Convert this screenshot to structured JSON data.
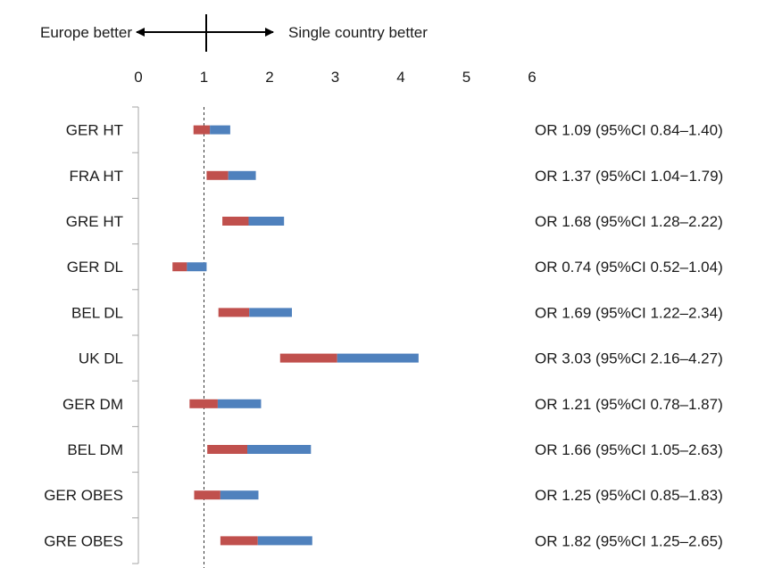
{
  "colors": {
    "lower": "#c0504d",
    "upper": "#4f81bd",
    "axis": "#a6a6a6",
    "text": "#1a1a1a"
  },
  "direction": {
    "left": "Europe better",
    "right": "Single country better"
  },
  "chart_data": {
    "type": "forest",
    "title": "",
    "xlabel": "",
    "ylabel": "",
    "xlim": [
      0,
      6
    ],
    "xticks": [
      "0",
      "1",
      "2",
      "3",
      "4",
      "5",
      "6"
    ],
    "reference_line": 1,
    "grid": false,
    "legend": "none",
    "rows": [
      {
        "label": "GER HT",
        "or": 1.09,
        "lo": 0.84,
        "hi": 1.4,
        "text": "OR 1.09 (95%CI 0.84–1.40)"
      },
      {
        "label": "FRA HT",
        "or": 1.37,
        "lo": 1.04,
        "hi": 1.79,
        "text": "OR 1.37 (95%CI 1.04−1.79)"
      },
      {
        "label": "GRE HT",
        "or": 1.68,
        "lo": 1.28,
        "hi": 2.22,
        "text": "OR 1.68 (95%CI 1.28–2.22)"
      },
      {
        "label": "GER DL",
        "or": 0.74,
        "lo": 0.52,
        "hi": 1.04,
        "text": "OR 0.74 (95%CI 0.52–1.04)"
      },
      {
        "label": "BEL DL",
        "or": 1.69,
        "lo": 1.22,
        "hi": 2.34,
        "text": "OR 1.69 (95%CI 1.22–2.34)"
      },
      {
        "label": "UK DL",
        "or": 3.03,
        "lo": 2.16,
        "hi": 4.27,
        "text": "OR 3.03 (95%CI 2.16–4.27)"
      },
      {
        "label": "GER DM",
        "or": 1.21,
        "lo": 0.78,
        "hi": 1.87,
        "text": "OR 1.21 (95%CI 0.78–1.87)"
      },
      {
        "label": "BEL DM",
        "or": 1.66,
        "lo": 1.05,
        "hi": 2.63,
        "text": "OR 1.66 (95%CI 1.05–2.63)"
      },
      {
        "label": "GER OBES",
        "or": 1.25,
        "lo": 0.85,
        "hi": 1.83,
        "text": "OR 1.25 (95%CI 0.85–1.83)"
      },
      {
        "label": "GRE OBES",
        "or": 1.82,
        "lo": 1.25,
        "hi": 2.65,
        "text": "OR 1.82 (95%CI 1.25–2.65)"
      }
    ]
  }
}
